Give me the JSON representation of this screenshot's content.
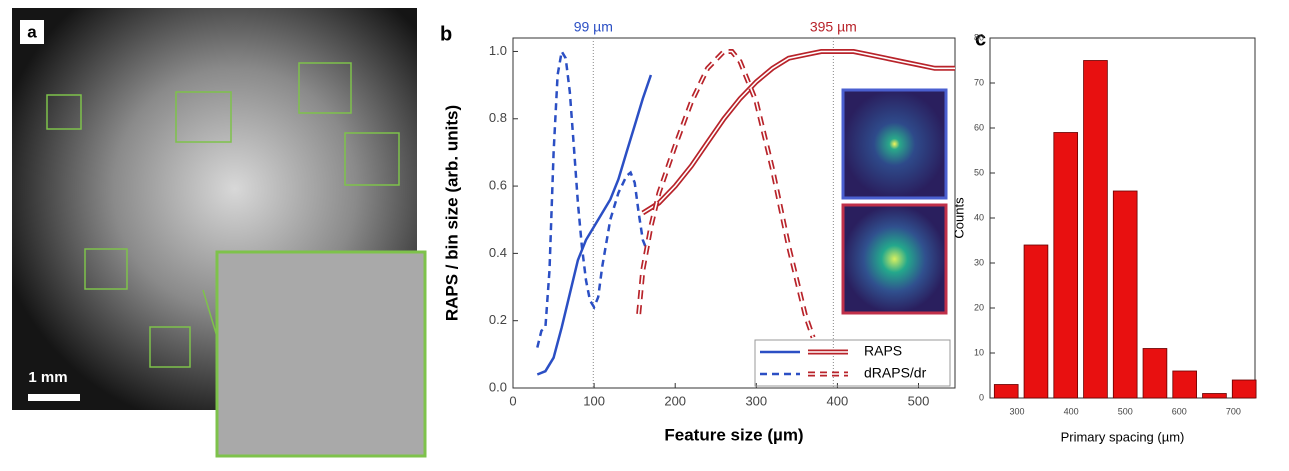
{
  "panel_labels": [
    "a",
    "b",
    "c"
  ],
  "scale_bar": "1 mm",
  "chart_data": [
    {
      "type": "line",
      "xlabel": "Feature size (µm)",
      "ylabel": "RAPS / bin size (arb. units)",
      "xlim": [
        0,
        545
      ],
      "xticks": [
        0,
        100,
        200,
        300,
        400,
        500
      ],
      "ylim": [
        0,
        1.04
      ],
      "yticks": [
        {
          "value": 0,
          "label": "0.0"
        },
        0.2,
        0.4,
        0.6,
        0.8,
        {
          "value": 1,
          "label": "1.0"
        }
      ],
      "series": [
        {
          "name": "RAPS",
          "style": "solid",
          "colors": [
            "#2b4fc4",
            "#b8232a"
          ],
          "curves": [
            {
              "x": [
                30,
                40,
                50,
                60,
                70,
                80,
                90,
                100,
                110,
                120,
                130,
                140,
                150,
                160,
                170
              ],
              "values": [
                0.04,
                0.05,
                0.09,
                0.18,
                0.28,
                0.38,
                0.44,
                0.48,
                0.52,
                0.56,
                0.62,
                0.7,
                0.78,
                0.86,
                0.93
              ]
            },
            {
              "x": [
                160,
                180,
                200,
                220,
                240,
                260,
                280,
                300,
                320,
                340,
                360,
                380,
                400,
                420,
                440,
                460,
                480,
                500,
                520,
                545
              ],
              "values": [
                0.52,
                0.55,
                0.6,
                0.66,
                0.73,
                0.8,
                0.86,
                0.91,
                0.95,
                0.98,
                0.99,
                1,
                1,
                1,
                0.99,
                0.98,
                0.97,
                0.96,
                0.95,
                0.95
              ]
            }
          ]
        },
        {
          "name": "dRAPS/dr",
          "style": "dashed",
          "colors": [
            "#2b4fc4",
            "#b8232a"
          ],
          "curves": [
            {
              "x": [
                30,
                35,
                40,
                45,
                50,
                55,
                60,
                65,
                70,
                75,
                80,
                85,
                90,
                95,
                100,
                105,
                110,
                120,
                130,
                140,
                145,
                150,
                155,
                160,
                165
              ],
              "values": [
                0.12,
                0.17,
                0.18,
                0.35,
                0.7,
                0.93,
                1,
                0.98,
                0.88,
                0.72,
                0.55,
                0.42,
                0.32,
                0.26,
                0.24,
                0.27,
                0.36,
                0.5,
                0.58,
                0.63,
                0.64,
                0.61,
                0.52,
                0.44,
                0.41
              ]
            },
            {
              "x": [
                155,
                160,
                170,
                180,
                200,
                220,
                240,
                260,
                270,
                280,
                300,
                320,
                340,
                360,
                370
              ],
              "values": [
                0.22,
                0.35,
                0.48,
                0.58,
                0.72,
                0.85,
                0.95,
                1,
                1,
                0.97,
                0.85,
                0.65,
                0.42,
                0.22,
                0.15
              ]
            }
          ]
        }
      ],
      "vlines": [
        {
          "x": 99,
          "label": "99 µm",
          "color": "#2b4fc4"
        },
        {
          "x": 395,
          "label": "395 µm",
          "color": "#b8232a"
        }
      ]
    },
    {
      "type": "bar",
      "xlabel": "Primary spacing (µm)",
      "ylabel": "Counts",
      "color": "#e81010",
      "x": [
        280,
        335,
        390,
        445,
        500,
        555,
        610,
        665,
        720
      ],
      "values": [
        3,
        34,
        59,
        75,
        46,
        11,
        6,
        1,
        4
      ],
      "xlim": [
        250,
        740
      ],
      "xticks": [
        300,
        400,
        500,
        600,
        700
      ],
      "ylim": [
        0,
        80
      ],
      "yticks": [
        0,
        10,
        20,
        30,
        40,
        50,
        60,
        70,
        80
      ]
    }
  ]
}
